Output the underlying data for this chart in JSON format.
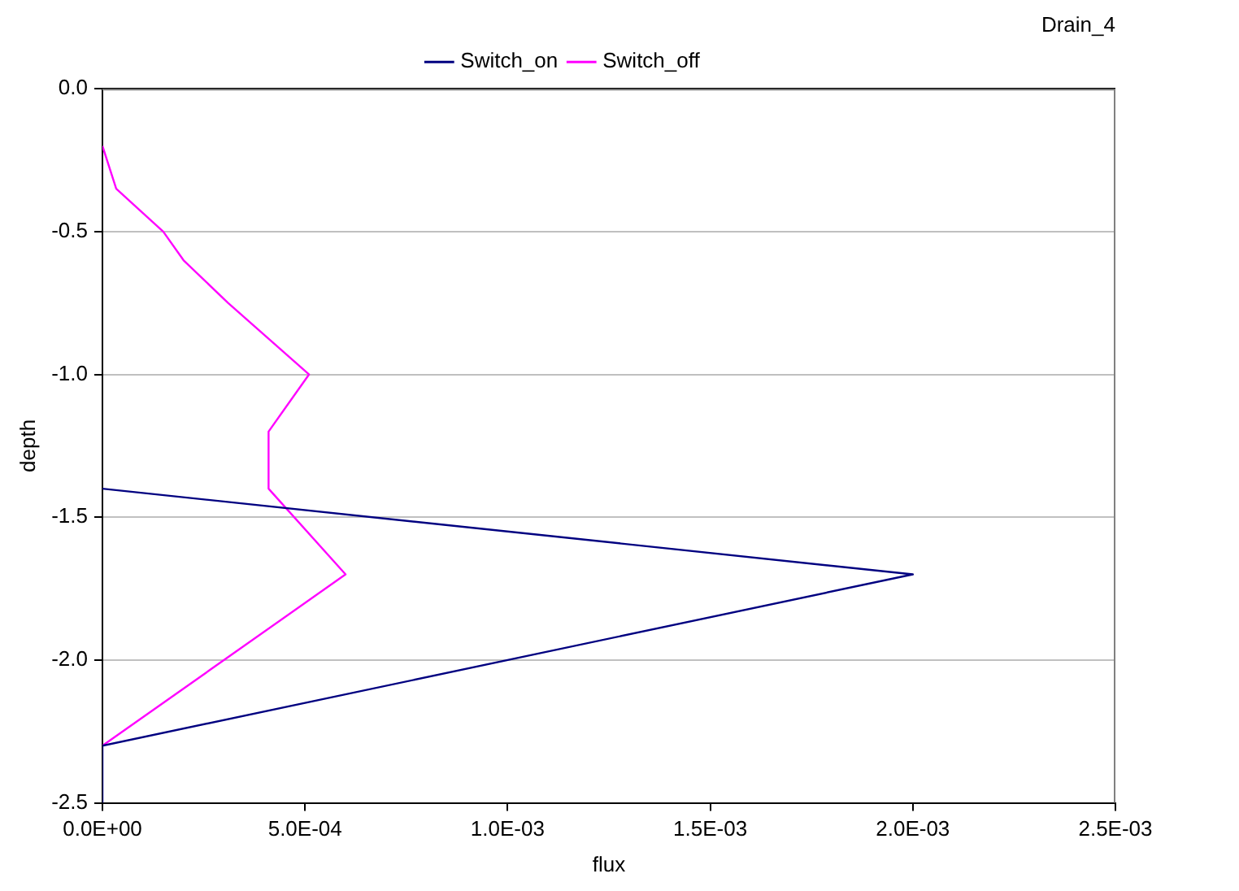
{
  "chart_data": {
    "type": "line",
    "title": "Drain_4",
    "xlabel": "flux",
    "ylabel": "depth",
    "xlim": [
      0,
      0.0025
    ],
    "xticks": [
      {
        "value": 0,
        "label": "0.0E+00"
      },
      {
        "value": 0.0005,
        "label": "5.0E-04"
      },
      {
        "value": 0.001,
        "label": "1.0E-03"
      },
      {
        "value": 0.0015,
        "label": "1.5E-03"
      },
      {
        "value": 0.002,
        "label": "2.0E-03"
      },
      {
        "value": 0.0025,
        "label": "2.5E-03"
      }
    ],
    "ylim": [
      -2.5,
      0
    ],
    "yticks": [
      {
        "value": 0,
        "label": "0.0"
      },
      {
        "value": -0.5,
        "label": "-0.5"
      },
      {
        "value": -1,
        "label": "-1.0"
      },
      {
        "value": -1.5,
        "label": "-1.5"
      },
      {
        "value": -2,
        "label": "-2.0"
      },
      {
        "value": -2.5,
        "label": "-2.5"
      }
    ],
    "grid": "y",
    "legend": "top",
    "marker": "none",
    "line_style": "solid",
    "series": [
      {
        "name": "Switch_on",
        "color": "#000080",
        "x": [
          0,
          0,
          0.002,
          0
        ],
        "values": [
          -2.5,
          -2.3,
          -1.7,
          -1.4
        ]
      },
      {
        "name": "Switch_off",
        "color": "#ff00ff",
        "x": [
          0,
          3.4e-05,
          0.00015,
          0.0002,
          0.00031,
          0.00051,
          0.00041,
          0.00041,
          0.0006,
          0
        ],
        "values": [
          -0.2,
          -0.35,
          -0.5,
          -0.6,
          -0.75,
          -1.0,
          -1.2,
          -1.4,
          -1.7,
          -2.3
        ]
      }
    ]
  }
}
